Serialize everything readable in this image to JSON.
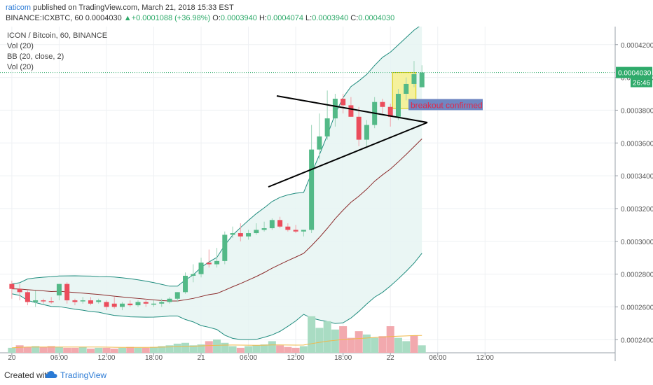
{
  "header": {
    "author": "raticom",
    "published": "published on TradingView.com, March 21, 2018 15:33 EST",
    "symbol": "BINANCE:ICXBTC, 60",
    "price": "0.0004030",
    "change_arrow": "▲",
    "change": "+0.0001088 (+36.98%)",
    "o_label": "O:",
    "o_value": "0.0003940",
    "h_label": "H:",
    "h_value": "0.0004074",
    "l_label": "L:",
    "l_value": "0.0003940",
    "c_label": "C:",
    "c_value": "0.0004030"
  },
  "legend": {
    "line1": "ICON / Bitcoin, 60, BINANCE",
    "line2": "Vol (20)",
    "line3": "BB (20, close, 2)",
    "line4": "Vol (20)"
  },
  "footer": {
    "created": "Created with",
    "brand": "TradingView"
  },
  "colors": {
    "up": "#53b987",
    "down": "#eb4d5c",
    "bb_band": "#1f8c7e",
    "bb_basis": "#8b2b2b",
    "bb_fill": "#e6f5f2",
    "vol_up": "#a9dcc3",
    "vol_down": "#f2a9ae",
    "vol_ma": "#f0b849",
    "highlight": "#f5f19c",
    "annotation_bg": "#6f87c2",
    "annotation_text": "#e0294a",
    "price_tag": "#2eaa6a"
  },
  "chart_data": {
    "type": "candlestick",
    "title": "ICON / Bitcoin, 60, BINANCE",
    "y_axis": {
      "ticks": [
        "0.0004200",
        "0.0004000",
        "0.0003800",
        "0.0003600",
        "0.0003400",
        "0.0003200",
        "0.0003000",
        "0.0002800",
        "0.0002600",
        "0.0002400"
      ],
      "range": [
        0.000232,
        0.000431
      ]
    },
    "x_axis": {
      "ticks": [
        "20",
        "06:00",
        "12:00",
        "18:00",
        "21",
        "06:00",
        "12:00",
        "18:00",
        "22",
        "06:00",
        "12:00"
      ],
      "range_hours": [
        -1.5,
        76.5
      ]
    },
    "current_price": {
      "value": "0.0004030",
      "countdown": "26:46"
    },
    "annotation": {
      "text": "breakout confirmed"
    },
    "candles": [
      {
        "t": 0,
        "o": 0.000274,
        "h": 0.000276,
        "l": 0.000265,
        "c": 0.000271
      },
      {
        "t": 1,
        "o": 0.000271,
        "h": 0.000274,
        "l": 0.000264,
        "c": 0.000269
      },
      {
        "t": 2,
        "o": 0.000269,
        "h": 0.00027,
        "l": 0.000261,
        "c": 0.000263
      },
      {
        "t": 3,
        "o": 0.000263,
        "h": 0.00027,
        "l": 0.00026,
        "c": 0.000264
      },
      {
        "t": 4,
        "o": 0.000264,
        "h": 0.000265,
        "l": 0.000262,
        "c": 0.0002635
      },
      {
        "t": 5,
        "o": 0.0002635,
        "h": 0.000266,
        "l": 0.000262,
        "c": 0.000263
      },
      {
        "t": 6,
        "o": 0.000267,
        "h": 0.000274,
        "l": 0.000264,
        "c": 0.000274
      },
      {
        "t": 7,
        "o": 0.000274,
        "h": 0.000275,
        "l": 0.000262,
        "c": 0.000264
      },
      {
        "t": 8,
        "o": 0.000264,
        "h": 0.000265,
        "l": 0.000261,
        "c": 0.000263
      },
      {
        "t": 9,
        "o": 0.000264,
        "h": 0.000266,
        "l": 0.000262,
        "c": 0.000264
      },
      {
        "t": 10,
        "o": 0.000264,
        "h": 0.000266,
        "l": 0.000261,
        "c": 0.000262
      },
      {
        "t": 11,
        "o": 0.000263,
        "h": 0.000265,
        "l": 0.000262,
        "c": 0.000264
      },
      {
        "t": 12,
        "o": 0.000263,
        "h": 0.000264,
        "l": 0.000258,
        "c": 0.00026
      },
      {
        "t": 13,
        "o": 0.000262,
        "h": 0.000266,
        "l": 0.000259,
        "c": 0.00026
      },
      {
        "t": 14,
        "o": 0.00026,
        "h": 0.000263,
        "l": 0.000258,
        "c": 0.000262
      },
      {
        "t": 15,
        "o": 0.000262,
        "h": 0.000264,
        "l": 0.00026,
        "c": 0.000261
      },
      {
        "t": 16,
        "o": 0.000261,
        "h": 0.000264,
        "l": 0.00026,
        "c": 0.000263
      },
      {
        "t": 17,
        "o": 0.000263,
        "h": 0.000265,
        "l": 0.00026,
        "c": 0.000262
      },
      {
        "t": 18,
        "o": 0.000262,
        "h": 0.000264,
        "l": 0.00026,
        "c": 0.000262
      },
      {
        "t": 19,
        "o": 0.000262,
        "h": 0.000265,
        "l": 0.00026,
        "c": 0.000263
      },
      {
        "t": 20,
        "o": 0.000263,
        "h": 0.000266,
        "l": 0.000262,
        "c": 0.000265
      },
      {
        "t": 21,
        "o": 0.000265,
        "h": 0.000269,
        "l": 0.000263,
        "c": 0.000269
      },
      {
        "t": 22,
        "o": 0.000269,
        "h": 0.000281,
        "l": 0.000268,
        "c": 0.000279
      },
      {
        "t": 23,
        "o": 0.000279,
        "h": 0.000286,
        "l": 0.000275,
        "c": 0.00028
      },
      {
        "t": 24,
        "o": 0.00028,
        "h": 0.00029,
        "l": 0.000278,
        "c": 0.000287
      },
      {
        "t": 25,
        "o": 0.000287,
        "h": 0.000295,
        "l": 0.000284,
        "c": 0.000286
      },
      {
        "t": 26,
        "o": 0.000286,
        "h": 0.000296,
        "l": 0.000284,
        "c": 0.000288
      },
      {
        "t": 27,
        "o": 0.000288,
        "h": 0.000306,
        "l": 0.000286,
        "c": 0.000304
      },
      {
        "t": 28,
        "o": 0.000304,
        "h": 0.000309,
        "l": 0.000302,
        "c": 0.000305
      },
      {
        "t": 29,
        "o": 0.000305,
        "h": 0.000311,
        "l": 0.0003,
        "c": 0.000303
      },
      {
        "t": 30,
        "o": 0.000303,
        "h": 0.000307,
        "l": 0.000301,
        "c": 0.000305
      },
      {
        "t": 31,
        "o": 0.000305,
        "h": 0.000311,
        "l": 0.000304,
        "c": 0.000307
      },
      {
        "t": 32,
        "o": 0.000307,
        "h": 0.000312,
        "l": 0.000306,
        "c": 0.000308
      },
      {
        "t": 33,
        "o": 0.000308,
        "h": 0.000314,
        "l": 0.000307,
        "c": 0.000313
      },
      {
        "t": 34,
        "o": 0.000313,
        "h": 0.000315,
        "l": 0.000308,
        "c": 0.000309
      },
      {
        "t": 35,
        "o": 0.000309,
        "h": 0.000311,
        "l": 0.000306,
        "c": 0.000307
      },
      {
        "t": 36,
        "o": 0.000307,
        "h": 0.00031,
        "l": 0.000305,
        "c": 0.000306
      },
      {
        "t": 37,
        "o": 0.000306,
        "h": 0.000307,
        "l": 0.000303,
        "c": 0.000307
      },
      {
        "t": 38,
        "o": 0.000307,
        "h": 0.000371,
        "l": 0.000305,
        "c": 0.000356
      },
      {
        "t": 39,
        "o": 0.000356,
        "h": 0.000378,
        "l": 0.00035,
        "c": 0.000364
      },
      {
        "t": 40,
        "o": 0.000364,
        "h": 0.000392,
        "l": 0.000362,
        "c": 0.000375
      },
      {
        "t": 41,
        "o": 0.000375,
        "h": 0.00039,
        "l": 0.00037,
        "c": 0.000387
      },
      {
        "t": 42,
        "o": 0.000387,
        "h": 0.00039,
        "l": 0.000378,
        "c": 0.000383
      },
      {
        "t": 43,
        "o": 0.000383,
        "h": 0.000388,
        "l": 0.000376,
        "c": 0.000376
      },
      {
        "t": 44,
        "o": 0.000376,
        "h": 0.000382,
        "l": 0.000358,
        "c": 0.000362
      },
      {
        "t": 45,
        "o": 0.000362,
        "h": 0.000374,
        "l": 0.000358,
        "c": 0.000371
      },
      {
        "t": 46,
        "o": 0.000371,
        "h": 0.000388,
        "l": 0.000369,
        "c": 0.000385
      },
      {
        "t": 47,
        "o": 0.000385,
        "h": 0.000387,
        "l": 0.000378,
        "c": 0.000382
      },
      {
        "t": 48,
        "o": 0.000382,
        "h": 0.000384,
        "l": 0.00037,
        "c": 0.000376
      },
      {
        "t": 49,
        "o": 0.000376,
        "h": 0.000393,
        "l": 0.000374,
        "c": 0.00039
      },
      {
        "t": 50,
        "o": 0.00039,
        "h": 0.0004,
        "l": 0.000386,
        "c": 0.000396
      },
      {
        "t": 51,
        "o": 0.000396,
        "h": 0.00041,
        "l": 0.000394,
        "c": 0.000402
      },
      {
        "t": 52,
        "o": 0.000394,
        "h": 0.0004074,
        "l": 0.000394,
        "c": 0.000403
      }
    ],
    "volume": {
      "values": [
        6,
        9,
        7,
        8,
        7,
        8,
        7,
        6,
        6,
        7,
        5,
        6,
        6,
        5,
        6,
        7,
        6,
        6,
        7,
        8,
        9,
        11,
        12,
        9,
        10,
        14,
        16,
        12,
        8,
        6,
        8,
        9,
        10,
        14,
        9,
        7,
        6,
        8,
        44,
        30,
        38,
        28,
        32,
        18,
        26,
        22,
        18,
        20,
        32,
        18,
        14,
        21,
        9
      ],
      "up": [
        true,
        false,
        false,
        true,
        false,
        false,
        true,
        false,
        false,
        true,
        false,
        true,
        false,
        false,
        true,
        false,
        true,
        false,
        true,
        true,
        true,
        true,
        true,
        true,
        true,
        false,
        true,
        true,
        true,
        false,
        true,
        true,
        true,
        true,
        false,
        false,
        false,
        true,
        true,
        true,
        true,
        true,
        false,
        false,
        false,
        true,
        true,
        false,
        false,
        true,
        true,
        false,
        true
      ],
      "ma": [
        6,
        6.5,
        7,
        7,
        7,
        7,
        7,
        7,
        7,
        7,
        7,
        7,
        6.8,
        6.6,
        6.5,
        6.5,
        6.5,
        6.5,
        6.6,
        6.8,
        7,
        7.4,
        7.8,
        8,
        8.3,
        8.7,
        9,
        9.3,
        9.4,
        9.3,
        9.2,
        9.1,
        9.2,
        9.5,
        9.5,
        9.4,
        9.3,
        9.4,
        11,
        12.5,
        14,
        15,
        16,
        16.5,
        17.2,
        17.8,
        18.4,
        19,
        19.6,
        20,
        20.3,
        20.7,
        20.8
      ]
    },
    "bollinger": {
      "period": 20,
      "mult": 2
    }
  }
}
